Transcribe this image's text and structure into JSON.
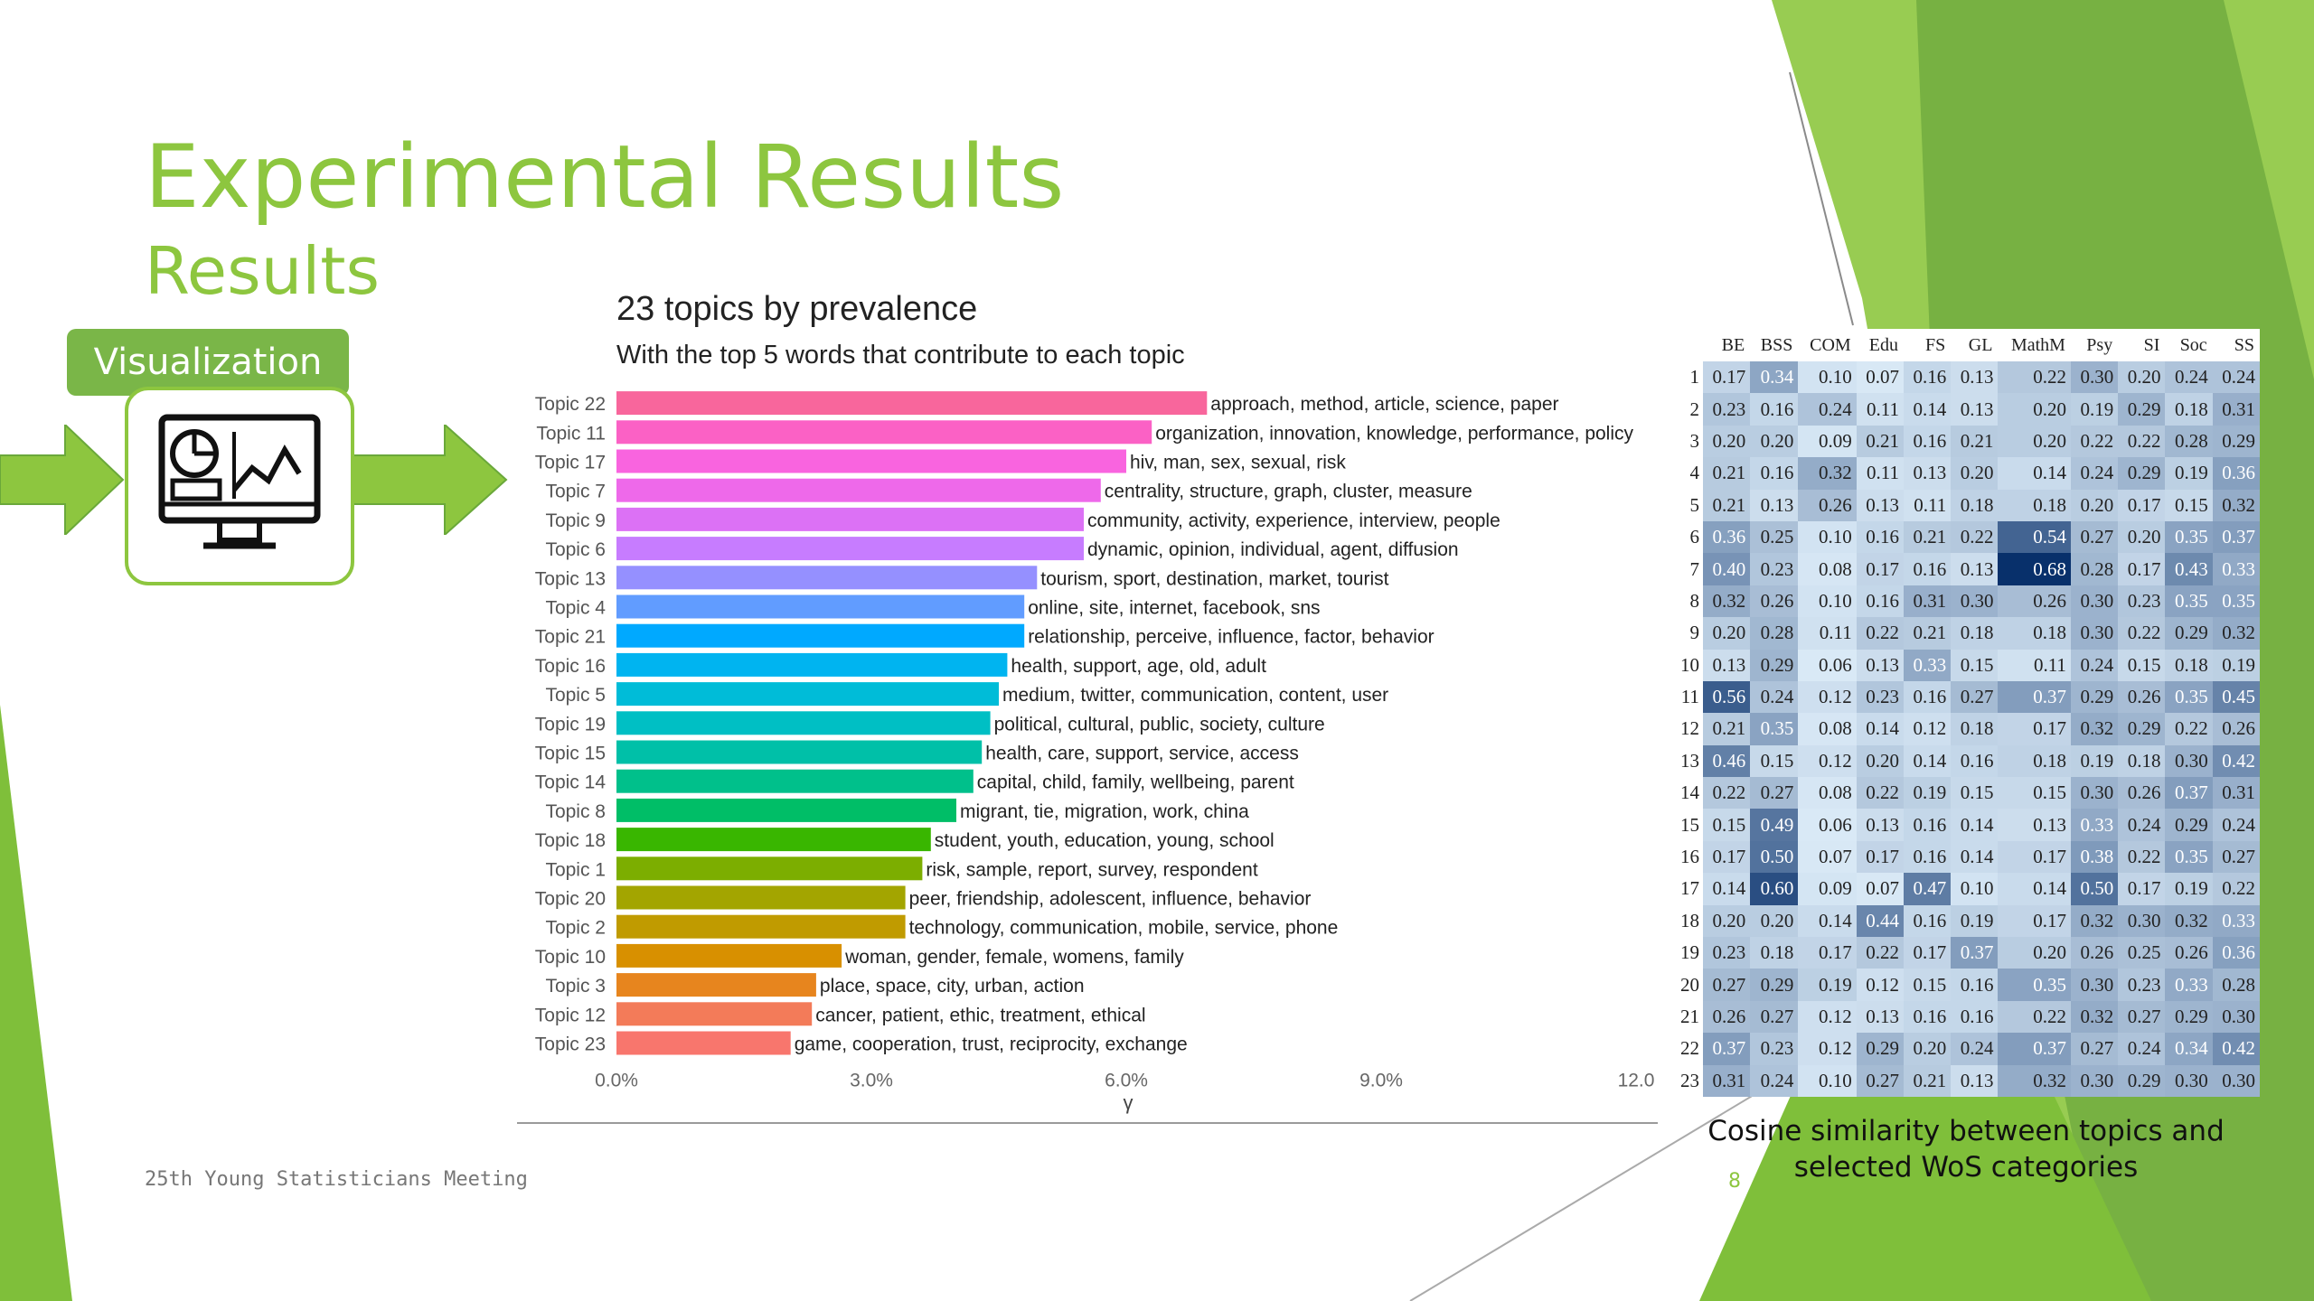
{
  "slide": {
    "title": "Experimental Results",
    "subtitle": "Results",
    "visualization_label": "Visualization",
    "footer": "25th Young Statisticians Meeting",
    "page_number": "8"
  },
  "colors": {
    "accent_green": "#8dc63f",
    "dark_green": "#6aa83a",
    "label_green": "#7ab648"
  },
  "icons": [
    "arrow-right-icon",
    "monitor-dashboard-icon"
  ],
  "chart_data": {
    "type": "bar",
    "orientation": "horizontal",
    "title": "23 topics by prevalence",
    "subtitle": "With the top 5 words that contribute to each topic",
    "xlabel": "γ",
    "xlim": [
      0,
      12
    ],
    "x_tick_labels": [
      "0.0%",
      "3.0%",
      "6.0%",
      "9.0%",
      "12.0"
    ],
    "bars": [
      {
        "topic": "Topic 22",
        "value": 6.95,
        "words": "approach, method, article, science, paper",
        "color": "#f8669c"
      },
      {
        "topic": "Topic 11",
        "value": 6.3,
        "words": "organization, innovation, knowledge, performance, policy",
        "color": "#fb61c5"
      },
      {
        "topic": "Topic 17",
        "value": 6.0,
        "words": "hiv, man, sex, sexual, risk",
        "color": "#f964df"
      },
      {
        "topic": "Topic 7",
        "value": 5.7,
        "words": "centrality, structure, graph, cluster, measure",
        "color": "#ee69ea"
      },
      {
        "topic": "Topic 9",
        "value": 5.5,
        "words": "community, activity, experience, interview, people",
        "color": "#dc71f5"
      },
      {
        "topic": "Topic 6",
        "value": 5.5,
        "words": "dynamic, opinion, individual, agent, diffusion",
        "color": "#c77cff"
      },
      {
        "topic": "Topic 13",
        "value": 4.95,
        "words": "tourism, sport, destination, market, tourist",
        "color": "#9590ff"
      },
      {
        "topic": "Topic 4",
        "value": 4.8,
        "words": "online, site, internet, facebook, sns",
        "color": "#619cff"
      },
      {
        "topic": "Topic 21",
        "value": 4.8,
        "words": "relationship, perceive, influence, factor, behavior",
        "color": "#00a9ff"
      },
      {
        "topic": "Topic 16",
        "value": 4.6,
        "words": "health, support, age, old, adult",
        "color": "#00b4f0"
      },
      {
        "topic": "Topic 5",
        "value": 4.5,
        "words": "medium, twitter, communication, content, user",
        "color": "#00bcd8"
      },
      {
        "topic": "Topic 19",
        "value": 4.4,
        "words": "political, cultural, public, society, culture",
        "color": "#00bfc4"
      },
      {
        "topic": "Topic 15",
        "value": 4.3,
        "words": "health, care, support, service, access",
        "color": "#00c0a8"
      },
      {
        "topic": "Topic 14",
        "value": 4.2,
        "words": "capital, child, family, wellbeing, parent",
        "color": "#00c08b"
      },
      {
        "topic": "Topic 8",
        "value": 4.0,
        "words": "migrant, tie, migration, work, china",
        "color": "#00be67"
      },
      {
        "topic": "Topic 18",
        "value": 3.7,
        "words": "student, youth, education, young, school",
        "color": "#39b600"
      },
      {
        "topic": "Topic 1",
        "value": 3.6,
        "words": "risk, sample, report, survey, respondent",
        "color": "#7cae00"
      },
      {
        "topic": "Topic 20",
        "value": 3.4,
        "words": "peer, friendship, adolescent, influence, behavior",
        "color": "#a3a500"
      },
      {
        "topic": "Topic 2",
        "value": 3.4,
        "words": "technology, communication, mobile, service, phone",
        "color": "#c09b00"
      },
      {
        "topic": "Topic 10",
        "value": 2.65,
        "words": "woman, gender, female, womens, family",
        "color": "#d89000"
      },
      {
        "topic": "Topic 3",
        "value": 2.35,
        "words": "place, space, city, urban, action",
        "color": "#e7851e"
      },
      {
        "topic": "Topic 12",
        "value": 2.3,
        "words": "cancer, patient, ethic, treatment, ethical",
        "color": "#f37b59"
      },
      {
        "topic": "Topic 23",
        "value": 2.05,
        "words": "game, cooperation, trust, reciprocity, exchange",
        "color": "#f8766d"
      }
    ]
  },
  "heatmap": {
    "columns": [
      "BE",
      "BSS",
      "COM",
      "Edu",
      "FS",
      "GL",
      "MathM",
      "Psy",
      "SI",
      "Soc",
      "SS"
    ],
    "rows": [
      [
        "1",
        [
          "0.17",
          "0.34",
          "0.10",
          "0.07",
          "0.16",
          "0.13",
          "0.22",
          "0.30",
          "0.20",
          "0.24",
          "0.24"
        ]
      ],
      [
        "2",
        [
          "0.23",
          "0.16",
          "0.24",
          "0.11",
          "0.14",
          "0.13",
          "0.20",
          "0.19",
          "0.29",
          "0.18",
          "0.31"
        ]
      ],
      [
        "3",
        [
          "0.20",
          "0.20",
          "0.09",
          "0.21",
          "0.16",
          "0.21",
          "0.20",
          "0.22",
          "0.22",
          "0.28",
          "0.29"
        ]
      ],
      [
        "4",
        [
          "0.21",
          "0.16",
          "0.32",
          "0.11",
          "0.13",
          "0.20",
          "0.14",
          "0.24",
          "0.29",
          "0.19",
          "0.36"
        ]
      ],
      [
        "5",
        [
          "0.21",
          "0.13",
          "0.26",
          "0.13",
          "0.11",
          "0.18",
          "0.18",
          "0.20",
          "0.17",
          "0.15",
          "0.32"
        ]
      ],
      [
        "6",
        [
          "0.36",
          "0.25",
          "0.10",
          "0.16",
          "0.21",
          "0.22",
          "0.54",
          "0.27",
          "0.20",
          "0.35",
          "0.37"
        ]
      ],
      [
        "7",
        [
          "0.40",
          "0.23",
          "0.08",
          "0.17",
          "0.16",
          "0.13",
          "0.68",
          "0.28",
          "0.17",
          "0.43",
          "0.33"
        ]
      ],
      [
        "8",
        [
          "0.32",
          "0.26",
          "0.10",
          "0.16",
          "0.31",
          "0.30",
          "0.26",
          "0.30",
          "0.23",
          "0.35",
          "0.35"
        ]
      ],
      [
        "9",
        [
          "0.20",
          "0.28",
          "0.11",
          "0.22",
          "0.21",
          "0.18",
          "0.18",
          "0.30",
          "0.22",
          "0.29",
          "0.32"
        ]
      ],
      [
        "10",
        [
          "0.13",
          "0.29",
          "0.06",
          "0.13",
          "0.33",
          "0.15",
          "0.11",
          "0.24",
          "0.15",
          "0.18",
          "0.19"
        ]
      ],
      [
        "11",
        [
          "0.56",
          "0.24",
          "0.12",
          "0.23",
          "0.16",
          "0.27",
          "0.37",
          "0.29",
          "0.26",
          "0.35",
          "0.45"
        ]
      ],
      [
        "12",
        [
          "0.21",
          "0.35",
          "0.08",
          "0.14",
          "0.12",
          "0.18",
          "0.17",
          "0.32",
          "0.29",
          "0.22",
          "0.26"
        ]
      ],
      [
        "13",
        [
          "0.46",
          "0.15",
          "0.12",
          "0.20",
          "0.14",
          "0.16",
          "0.18",
          "0.19",
          "0.18",
          "0.30",
          "0.42"
        ]
      ],
      [
        "14",
        [
          "0.22",
          "0.27",
          "0.08",
          "0.22",
          "0.19",
          "0.15",
          "0.15",
          "0.30",
          "0.26",
          "0.37",
          "0.31"
        ]
      ],
      [
        "15",
        [
          "0.15",
          "0.49",
          "0.06",
          "0.13",
          "0.16",
          "0.14",
          "0.13",
          "0.33",
          "0.24",
          "0.29",
          "0.24"
        ]
      ],
      [
        "16",
        [
          "0.17",
          "0.50",
          "0.07",
          "0.17",
          "0.16",
          "0.14",
          "0.17",
          "0.38",
          "0.22",
          "0.35",
          "0.27"
        ]
      ],
      [
        "17",
        [
          "0.14",
          "0.60",
          "0.09",
          "0.07",
          "0.47",
          "0.10",
          "0.14",
          "0.50",
          "0.17",
          "0.19",
          "0.22"
        ]
      ],
      [
        "18",
        [
          "0.20",
          "0.20",
          "0.14",
          "0.44",
          "0.16",
          "0.19",
          "0.17",
          "0.32",
          "0.30",
          "0.32",
          "0.33"
        ]
      ],
      [
        "19",
        [
          "0.23",
          "0.18",
          "0.17",
          "0.22",
          "0.17",
          "0.37",
          "0.20",
          "0.26",
          "0.25",
          "0.26",
          "0.36"
        ]
      ],
      [
        "20",
        [
          "0.27",
          "0.29",
          "0.19",
          "0.12",
          "0.15",
          "0.16",
          "0.35",
          "0.30",
          "0.23",
          "0.33",
          "0.28"
        ]
      ],
      [
        "21",
        [
          "0.26",
          "0.27",
          "0.12",
          "0.13",
          "0.16",
          "0.16",
          "0.22",
          "0.32",
          "0.27",
          "0.29",
          "0.30"
        ]
      ],
      [
        "22",
        [
          "0.37",
          "0.23",
          "0.12",
          "0.29",
          "0.20",
          "0.24",
          "0.37",
          "0.27",
          "0.24",
          "0.34",
          "0.42"
        ]
      ],
      [
        "23",
        [
          "0.31",
          "0.24",
          "0.10",
          "0.27",
          "0.21",
          "0.13",
          "0.32",
          "0.30",
          "0.29",
          "0.30",
          "0.30"
        ]
      ]
    ],
    "caption": "Cosine similarity between topics and selected WoS categories"
  }
}
